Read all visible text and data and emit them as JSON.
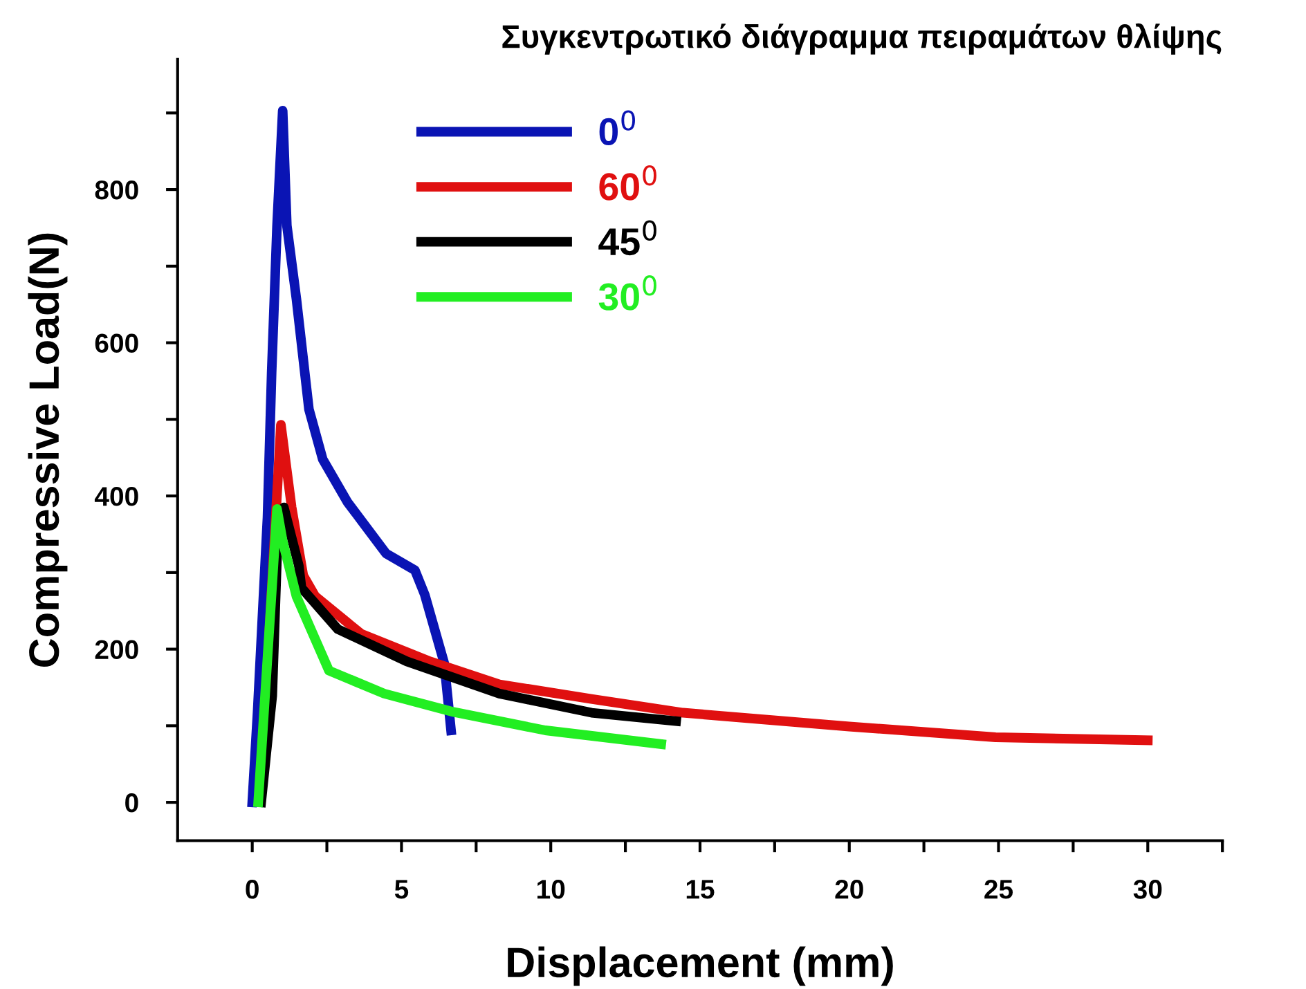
{
  "chart_data": {
    "type": "line",
    "title": "Συγκεντρωτικό διάγραμμα πειραμάτων θλίψης",
    "xlabel": "Displacement (mm)",
    "ylabel": "Compressive Load(N)",
    "xlim": [
      -2.5,
      32.5
    ],
    "ylim": [
      -50,
      970
    ],
    "xticks": [
      0,
      {
        "value": 2.5,
        "label": null
      },
      5,
      {
        "value": 7.5,
        "label": null
      },
      10,
      {
        "value": 12.5,
        "label": null
      },
      15,
      {
        "value": 17.5,
        "label": null
      },
      20,
      {
        "value": 22.5,
        "label": null
      },
      25,
      {
        "value": 27.5,
        "label": null
      },
      30,
      {
        "value": 32.5,
        "label": null
      }
    ],
    "yticks": [
      0,
      {
        "value": 100,
        "label": null
      },
      200,
      {
        "value": 300,
        "label": null
      },
      400,
      {
        "value": 500,
        "label": null
      },
      600,
      {
        "value": 700,
        "label": null
      },
      800,
      {
        "value": 900,
        "label": null
      }
    ],
    "grid": false,
    "legend": "top left",
    "line_style": "solid",
    "marker": "none",
    "series": [
      {
        "name": "0$^{0}$",
        "color": "#0a14b4",
        "x": [
          0,
          0.18,
          0.51,
          0.65,
          0.83,
          1.02,
          1.16,
          1.48,
          1.9,
          2.36,
          3.19,
          4.48,
          5.45,
          5.78,
          6.43,
          6.66
        ],
        "values": [
          0,
          119,
          372,
          561,
          753,
          903,
          753,
          657,
          513,
          448,
          392,
          325,
          303,
          271,
          182,
          94
        ]
      },
      {
        "name": "60$^{0}$",
        "color": "#e01010",
        "x": [
          0.26,
          0.96,
          1.32,
          1.71,
          2.11,
          3.65,
          5.96,
          8.28,
          11.36,
          14.43,
          20,
          24.9,
          30
        ],
        "values": [
          5,
          493,
          385,
          296,
          269,
          220,
          184,
          154,
          135,
          117,
          99,
          85,
          81
        ]
      },
      {
        "name": "45$^{0}$",
        "color": "#000000",
        "x": [
          0.3,
          0.67,
          0.83,
          1.06,
          1.56,
          1.65,
          2.87,
          5.18,
          8.28,
          11.37,
          14.2
        ],
        "values": [
          0,
          139,
          321,
          385,
          309,
          280,
          226,
          184,
          142,
          117,
          106
        ]
      },
      {
        "name": "30$^{0}$",
        "color": "#22ee22",
        "x": [
          0.2,
          0.83,
          1.02,
          1.48,
          2.57,
          4.42,
          6.74,
          9.82,
          13.7
        ],
        "values": [
          0,
          383,
          341,
          269,
          172,
          142,
          118,
          94,
          76
        ]
      }
    ]
  }
}
